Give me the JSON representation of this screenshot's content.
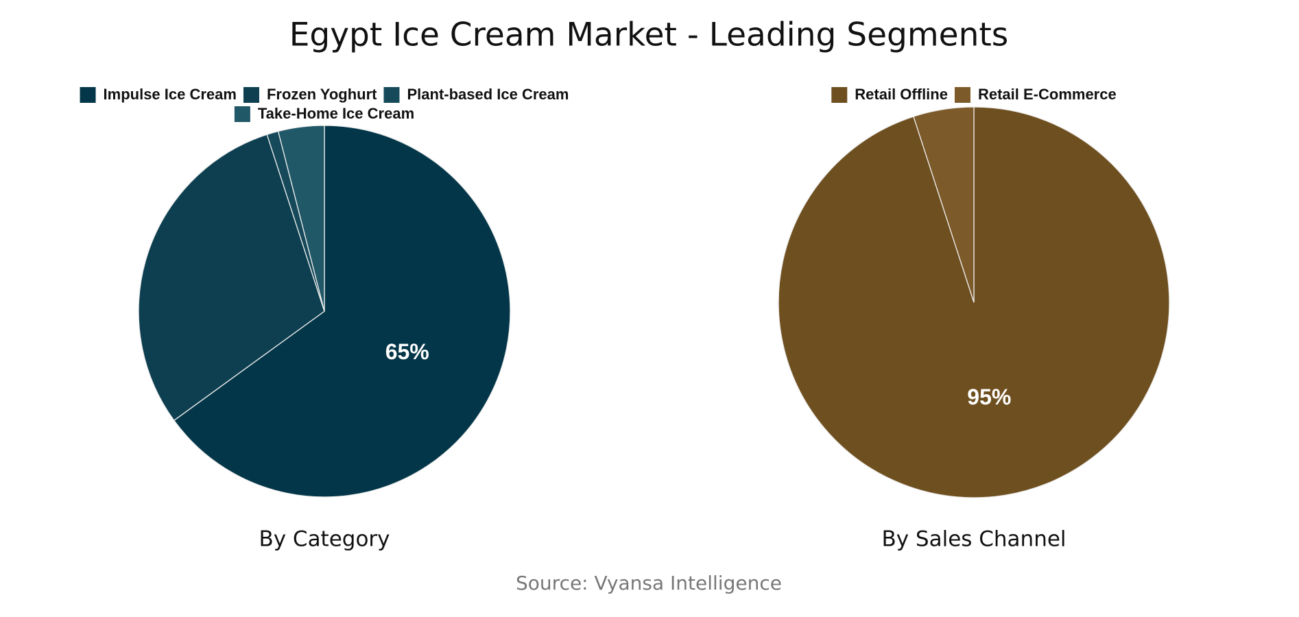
{
  "title": "Egypt Ice Cream Market - Leading Segments",
  "source": "Source: Vyansa Intelligence",
  "chart_data": [
    {
      "type": "pie",
      "title": "By Category",
      "categories": [
        "Impulse Ice Cream",
        "Frozen Yoghurt",
        "Plant-based Ice Cream",
        "Take-Home Ice Cream"
      ],
      "values": [
        65,
        30,
        1,
        4
      ],
      "value_labels": [
        "65%",
        null,
        null,
        null
      ],
      "colors": [
        "#033648",
        "#0d3f50",
        "#164a5b",
        "#215868"
      ]
    },
    {
      "type": "pie",
      "title": "By Sales Channel",
      "categories": [
        "Retail Offline",
        "Retail E-Commerce"
      ],
      "values": [
        95,
        5
      ],
      "value_labels": [
        "95%",
        null
      ],
      "colors": [
        "#6e4f1f",
        "#7d5a2a"
      ]
    }
  ]
}
